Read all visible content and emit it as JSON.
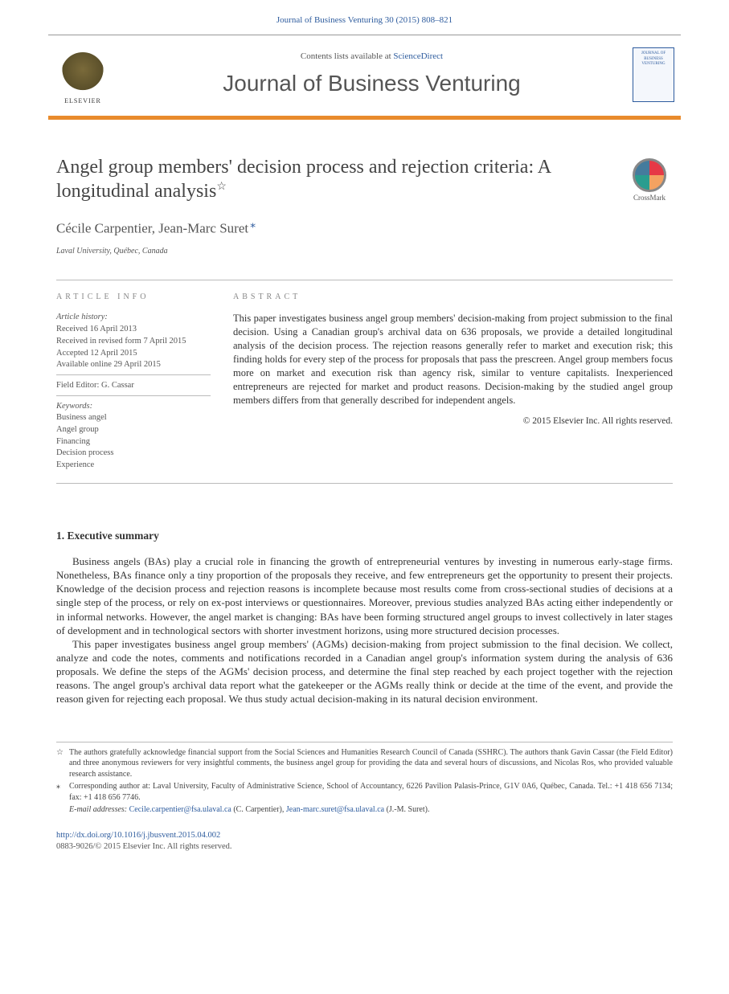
{
  "header": {
    "citation": "Journal of Business Venturing 30 (2015) 808–821"
  },
  "listing": {
    "contents_prefix": "Contents lists available at ",
    "contents_link": "ScienceDirect",
    "journal_name": "Journal of Business Venturing",
    "elsevier_label": "ELSEVIER",
    "cover_text_1": "JOURNAL OF",
    "cover_text_2": "BUSINESS",
    "cover_text_3": "VENTURING"
  },
  "article": {
    "title": "Angel group members' decision process and rejection criteria: A longitudinal analysis",
    "title_star": "☆",
    "authors": "Cécile Carpentier, Jean-Marc Suret",
    "corr_mark": "⁎",
    "affiliation": "Laval University, Québec, Canada",
    "crossmark_label": "CrossMark"
  },
  "info": {
    "label": "article info",
    "history_hdr": "Article history:",
    "received": "Received 16 April 2013",
    "revised": "Received in revised form 7 April 2015",
    "accepted": "Accepted 12 April 2015",
    "online": "Available online 29 April 2015",
    "editor": "Field Editor: G. Cassar",
    "keywords_hdr": "Keywords:",
    "kw1": "Business angel",
    "kw2": "Angel group",
    "kw3": "Financing",
    "kw4": "Decision process",
    "kw5": "Experience"
  },
  "abstract": {
    "label": "abstract",
    "text": "This paper investigates business angel group members' decision-making from project submission to the final decision. Using a Canadian group's archival data on 636 proposals, we provide a detailed longitudinal analysis of the decision process. The rejection reasons generally refer to market and execution risk; this finding holds for every step of the process for proposals that pass the prescreen. Angel group members focus more on market and execution risk than agency risk, similar to venture capitalists. Inexperienced entrepreneurs are rejected for market and product reasons. Decision-making by the studied angel group members differs from that generally described for independent angels.",
    "copyright": "© 2015 Elsevier Inc. All rights reserved."
  },
  "body": {
    "h1": "1. Executive summary",
    "p1": "Business angels (BAs) play a crucial role in financing the growth of entrepreneurial ventures by investing in numerous early-stage firms. Nonetheless, BAs finance only a tiny proportion of the proposals they receive, and few entrepreneurs get the opportunity to present their projects. Knowledge of the decision process and rejection reasons is incomplete because most results come from cross-sectional studies of decisions at a single step of the process, or rely on ex-post interviews or questionnaires. Moreover, previous studies analyzed BAs acting either independently or in informal networks. However, the angel market is changing: BAs have been forming structured angel groups to invest collectively in later stages of development and in technological sectors with shorter investment horizons, using more structured decision processes.",
    "p2": "This paper investigates business angel group members' (AGMs) decision-making from project submission to the final decision. We collect, analyze and code the notes, comments and notifications recorded in a Canadian angel group's information system during the analysis of 636 proposals. We define the steps of the AGMs' decision process, and determine the final step reached by each project together with the rejection reasons. The angel group's archival data report what the gatekeeper or the AGMs really think or decide at the time of the event, and provide the reason given for rejecting each proposal. We thus study actual decision-making in its natural decision environment."
  },
  "footnotes": {
    "ack_mark": "☆",
    "ack": "The authors gratefully acknowledge financial support from the Social Sciences and Humanities Research Council of Canada (SSHRC). The authors thank Gavin Cassar (the Field Editor) and three anonymous reviewers for very insightful comments, the business angel group for providing the data and several hours of discussions, and Nicolas Ros, who provided valuable research assistance.",
    "corr_mark": "⁎",
    "corr": "Corresponding author at: Laval University, Faculty of Administrative Science, School of Accountancy, 6226 Pavilion Palasis-Prince, G1V 0A6, Québec, Canada. Tel.: +1 418 656 7134; fax: +1 418 656 7746.",
    "email_label": "E-mail addresses: ",
    "email1": "Cecile.carpentier@fsa.ulaval.ca",
    "email1_who": " (C. Carpentier), ",
    "email2": "Jean-marc.suret@fsa.ulaval.ca",
    "email2_who": " (J.-M. Suret)."
  },
  "footer": {
    "doi": "http://dx.doi.org/10.1016/j.jbusvent.2015.04.002",
    "issn_line": "0883-9026/© 2015 Elsevier Inc. All rights reserved."
  },
  "colors": {
    "link": "#2e5c9e",
    "accent_bar": "#e98b2c",
    "text": "#333333"
  }
}
